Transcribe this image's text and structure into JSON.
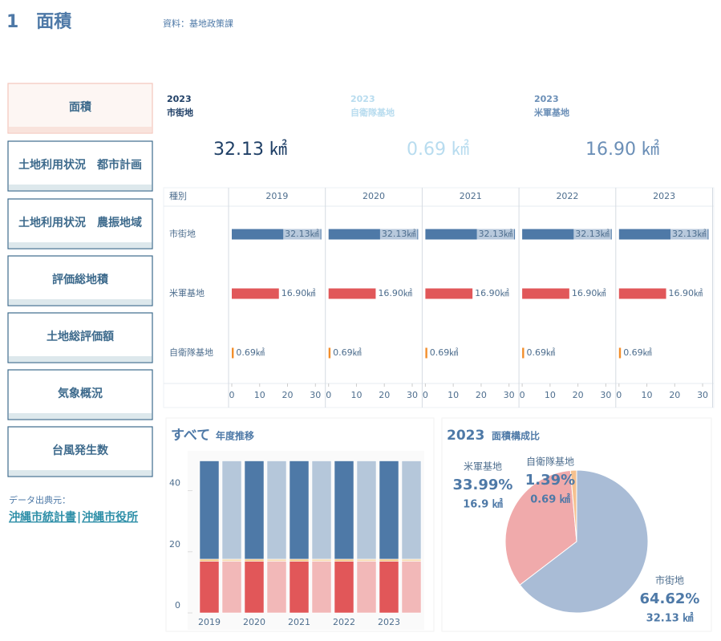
{
  "header": {
    "title": "1　面積",
    "source": "資料：基地政策課"
  },
  "nav": [
    "面積",
    "土地利用状況　都市計画",
    "土地利用状況　農振地域",
    "評価総地積",
    "土地総評価額",
    "気象概況",
    "台風発生数"
  ],
  "credit": {
    "label": "データ出典元：",
    "links": [
      "沖縄市統計書",
      "沖縄市役所"
    ],
    "separator": "|"
  },
  "kpis": [
    {
      "year": "2023",
      "name": "市街地",
      "value": "32.13 ㎢",
      "color": "#1f3f66"
    },
    {
      "year": "2023",
      "name": "自衛隊基地",
      "value": "0.69 ㎢",
      "color": "#b8dcef"
    },
    {
      "year": "2023",
      "name": "米軍基地",
      "value": "16.90 ㎢",
      "color": "#6b8fb7"
    }
  ],
  "chart_data": [
    {
      "type": "hbar_panels",
      "row_header": "種別",
      "categories": [
        "市街地",
        "米軍基地",
        "自衛隊基地"
      ],
      "colors": [
        "#4e79a7",
        "#e15759",
        "#f28e2b"
      ],
      "panels": [
        {
          "title": "2019",
          "values": [
            32.13,
            16.9,
            0.69
          ],
          "value_labels": [
            "32.13㎢",
            "16.90㎢",
            "0.69㎢"
          ]
        },
        {
          "title": "2020",
          "values": [
            32.13,
            16.9,
            0.69
          ],
          "value_labels": [
            "32.13㎢",
            "16.90㎢",
            "0.69㎢"
          ]
        },
        {
          "title": "2021",
          "values": [
            32.13,
            16.9,
            0.69
          ],
          "value_labels": [
            "32.13㎢",
            "16.90㎢",
            "0.69㎢"
          ]
        },
        {
          "title": "2022",
          "values": [
            32.13,
            16.9,
            0.69
          ],
          "value_labels": [
            "32.13㎢",
            "16.90㎢",
            "0.69㎢"
          ]
        },
        {
          "title": "2023",
          "values": [
            32.13,
            16.9,
            0.69
          ],
          "value_labels": [
            "32.13㎢",
            "16.90㎢",
            "0.69㎢"
          ]
        }
      ],
      "xlim": [
        0,
        33
      ],
      "xticks": [
        0,
        10,
        20,
        30
      ]
    },
    {
      "type": "stacked_bar",
      "title": "すべて",
      "subtitle": "年度推移",
      "categories": [
        "2019",
        null,
        "2020",
        null,
        "2021",
        null,
        "2022",
        null,
        "2023",
        null
      ],
      "series": [
        {
          "color": "#e15759",
          "light_color": "#f2b8b8",
          "values": [
            16.9,
            16.9,
            16.9,
            16.9,
            16.9,
            16.9,
            16.9,
            16.9,
            16.9,
            16.9
          ]
        },
        {
          "color": "#f2c27a",
          "light_color": "#f7d9ae",
          "values": [
            0.69,
            0.69,
            0.69,
            0.69,
            0.69,
            0.69,
            0.69,
            0.69,
            0.69,
            0.69
          ]
        },
        {
          "color": "#4e79a7",
          "light_color": "#b5c7da",
          "values": [
            32.13,
            32.13,
            32.13,
            32.13,
            32.13,
            32.13,
            32.13,
            32.13,
            32.13,
            32.13
          ]
        }
      ],
      "ylim": [
        0,
        53
      ],
      "yticks": [
        0,
        20,
        40
      ]
    },
    {
      "type": "pie",
      "title": "2023",
      "subtitle": "面積構成比",
      "categories": [
        "市街地",
        "米軍基地",
        "自衛隊基地"
      ],
      "values": [
        64.62,
        33.99,
        1.39
      ],
      "value_labels": [
        "64.62%",
        "33.99%",
        "1.39%"
      ],
      "area_labels": [
        "32.13 ㎢",
        "16.9 ㎢",
        "0.69 ㎢"
      ],
      "colors": [
        "#a9bcd6",
        "#f0aaab",
        "#f5c18f"
      ]
    }
  ]
}
